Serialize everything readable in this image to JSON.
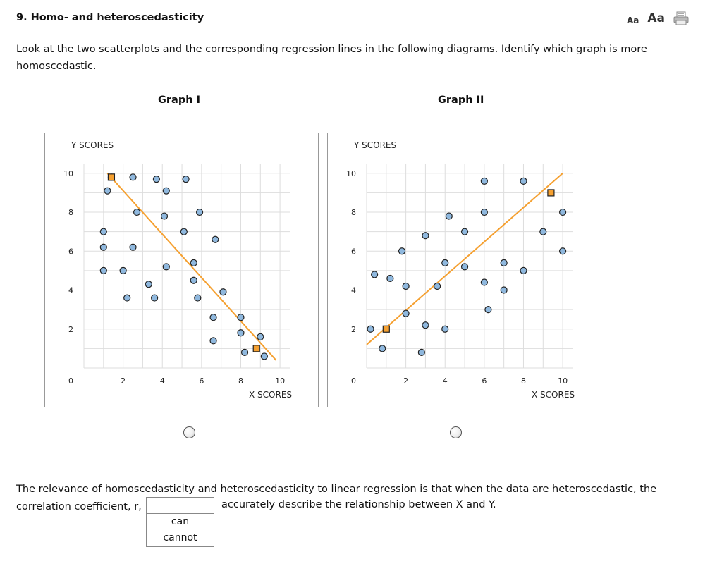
{
  "question": {
    "title": "9. Homo- and heteroscedasticity"
  },
  "toolbar": {
    "font_small_label": "Aa",
    "font_large_label": "Aa",
    "print_icon": "printer-icon"
  },
  "prompt": "Look at the two scatterplots and the corresponding regression lines in the following diagrams. Identify which graph is more homoscedastic.",
  "graphs": [
    {
      "title": "Graph I"
    },
    {
      "title": "Graph II"
    }
  ],
  "chart_data": [
    {
      "type": "scatter",
      "title": "Graph I",
      "xlabel": "X SCORES",
      "ylabel": "Y SCORES",
      "xlim": [
        0,
        10.5
      ],
      "ylim": [
        0,
        10.5
      ],
      "xticks": [
        "2",
        "4",
        "6",
        "8",
        "10"
      ],
      "yticks": [
        "10",
        "8",
        "6",
        "4",
        "2",
        "0"
      ],
      "grid": true,
      "points": [
        [
          1.4,
          9.8
        ],
        [
          2.5,
          9.8
        ],
        [
          3.7,
          9.7
        ],
        [
          5.2,
          9.7
        ],
        [
          1.2,
          9.1
        ],
        [
          4.2,
          9.1
        ],
        [
          2.7,
          8.0
        ],
        [
          4.1,
          7.8
        ],
        [
          5.9,
          8.0
        ],
        [
          1.0,
          7.0
        ],
        [
          5.1,
          7.0
        ],
        [
          6.7,
          6.6
        ],
        [
          1.0,
          6.2
        ],
        [
          2.5,
          6.2
        ],
        [
          1.0,
          5.0
        ],
        [
          2.0,
          5.0
        ],
        [
          4.2,
          5.2
        ],
        [
          5.6,
          5.4
        ],
        [
          5.6,
          4.5
        ],
        [
          3.3,
          4.3
        ],
        [
          7.1,
          3.9
        ],
        [
          2.2,
          3.6
        ],
        [
          3.6,
          3.6
        ],
        [
          5.8,
          3.6
        ],
        [
          6.6,
          2.6
        ],
        [
          8.0,
          2.6
        ],
        [
          8.0,
          1.8
        ],
        [
          9.0,
          1.6
        ],
        [
          6.6,
          1.4
        ],
        [
          8.2,
          0.8
        ],
        [
          9.2,
          0.6
        ]
      ],
      "regression_points": [
        [
          1.4,
          9.8
        ],
        [
          8.8,
          1.0
        ]
      ],
      "regression_line": {
        "x1": 1.2,
        "y1": 10.0,
        "x2": 9.8,
        "y2": 0.4,
        "color": "#F5A030"
      },
      "colors": {
        "point": "#8FB8DE",
        "marker": "#F5A030"
      }
    },
    {
      "type": "scatter",
      "title": "Graph II",
      "xlabel": "X SCORES",
      "ylabel": "Y SCORES",
      "xlim": [
        0,
        10.5
      ],
      "ylim": [
        0,
        10.5
      ],
      "xticks": [
        "2",
        "4",
        "6",
        "8",
        "10"
      ],
      "yticks": [
        "10",
        "8",
        "6",
        "4",
        "2",
        "0"
      ],
      "grid": true,
      "points": [
        [
          6.0,
          9.6
        ],
        [
          8.0,
          9.6
        ],
        [
          4.2,
          7.8
        ],
        [
          6.0,
          8.0
        ],
        [
          10.0,
          8.0
        ],
        [
          3.0,
          6.8
        ],
        [
          5.0,
          7.0
        ],
        [
          9.0,
          7.0
        ],
        [
          1.8,
          6.0
        ],
        [
          10.0,
          6.0
        ],
        [
          4.0,
          5.4
        ],
        [
          5.0,
          5.2
        ],
        [
          7.0,
          5.4
        ],
        [
          8.0,
          5.0
        ],
        [
          0.4,
          4.8
        ],
        [
          1.2,
          4.6
        ],
        [
          2.0,
          4.2
        ],
        [
          3.6,
          4.2
        ],
        [
          6.0,
          4.4
        ],
        [
          7.0,
          4.0
        ],
        [
          2.0,
          2.8
        ],
        [
          6.2,
          3.0
        ],
        [
          0.2,
          2.0
        ],
        [
          3.0,
          2.2
        ],
        [
          4.0,
          2.0
        ],
        [
          0.8,
          1.0
        ],
        [
          2.8,
          0.8
        ]
      ],
      "regression_points": [
        [
          1.0,
          2.0
        ],
        [
          9.4,
          9.0
        ]
      ],
      "regression_line": {
        "x1": 0.0,
        "y1": 1.2,
        "x2": 10.0,
        "y2": 10.0,
        "color": "#F5A030"
      },
      "colors": {
        "point": "#8FB8DE",
        "marker": "#F5A030"
      }
    }
  ],
  "statement": {
    "text_before": "The relevance of homoscedasticity and heteroscedasticity to linear regression is that when the data are heteroscedastic, the correlation coefficient, r,",
    "text_after": "accurately describe the relationship between X and Y.",
    "dropdown_value": "",
    "options": [
      "can",
      "cannot"
    ]
  }
}
